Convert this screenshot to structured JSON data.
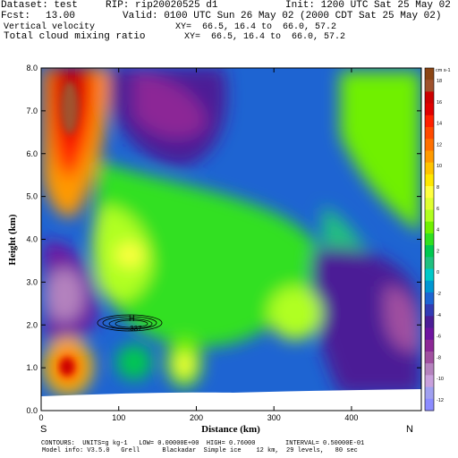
{
  "header": {
    "dataset": "Dataset: test",
    "rip": "RIP: rip20020525 d1",
    "init": "Init: 1200 UTC Sat 25 May 02",
    "fcst_label": "Fcst:",
    "fcst_value": "13.00",
    "valid": "Valid: 0100 UTC Sun 26 May 02 (2000 CDT Sat 25 May 02)",
    "field1": "Vertical velocity",
    "field1_xy": "XY=  66.5, 16.4 to  66.0, 57.2",
    "field2": "Total cloud mixing ratio",
    "field2_xy": "XY=  66.5, 16.4 to  66.0, 57.2"
  },
  "footer": {
    "contours": "CONTOURS:  UNITS=g kg-1   LOW= 0.00000E+00  HIGH= 0.76000        INTERVAL= 0.50000E-01",
    "model": "Model info: V3.5.0   Grell      Blackadar  Simple ice    12 km,  29 levels,   80 sec"
  },
  "chart_data": {
    "type": "heatmap",
    "title": "",
    "xlabel": "Distance (km)",
    "ylabel": "Height (km)",
    "xlim": [
      0,
      490
    ],
    "ylim": [
      0,
      8
    ],
    "xticks": [
      "0",
      "100",
      "200",
      "300",
      "400"
    ],
    "xtick_values": [
      0,
      100,
      200,
      300,
      400
    ],
    "yticks": [
      "0.0",
      "1.0",
      "2.0",
      "3.0",
      "4.0",
      "5.0",
      "6.0",
      "7.0",
      "8.0"
    ],
    "ytick_values": [
      0,
      1,
      2,
      3,
      4,
      5,
      6,
      7,
      8
    ],
    "endpoint_left": "S",
    "endpoint_right": "N",
    "colorbar_units": "cm s-1",
    "colorbar_labels": [
      "18",
      "16",
      "14",
      "12",
      "10",
      "8",
      "6",
      "4",
      "2",
      "0",
      "-2",
      "-4",
      "-6",
      "-8",
      "-10",
      "-12"
    ],
    "colorbar_colors": [
      "#8b4513",
      "#a0522d",
      "#cc0000",
      "#e00000",
      "#ff2000",
      "#ff4a00",
      "#ff7000",
      "#ff9a00",
      "#ffc400",
      "#ffe800",
      "#ffff40",
      "#e0ff30",
      "#b0ff20",
      "#70f000",
      "#30e020",
      "#00c850",
      "#20c080",
      "#00c8c8",
      "#0096d2",
      "#1e64d2",
      "#323cb4",
      "#4b1e96",
      "#6e14a0",
      "#8c2896",
      "#a050a0",
      "#b482be",
      "#c8a0dc",
      "#a0a0f0",
      "#8c8cff"
    ],
    "contour_label": "H",
    "contour_value": ".337",
    "field_regions": [
      {
        "feature": "strong updraft",
        "x": 40,
        "y": 7.2,
        "value": 18
      },
      {
        "feature": "low-level updraft",
        "x": 38,
        "y": 1.0,
        "value": 14
      },
      {
        "feature": "downdraft",
        "x": 35,
        "y": 3.0,
        "value": -12
      },
      {
        "feature": "updraft",
        "x": 120,
        "y": 3.7,
        "value": 7
      },
      {
        "feature": "updraft",
        "x": 190,
        "y": 1.0,
        "value": 6
      },
      {
        "feature": "updraft",
        "x": 320,
        "y": 2.2,
        "value": 6
      },
      {
        "feature": "downdraft",
        "x": 160,
        "y": 7.0,
        "value": -7
      },
      {
        "feature": "downdraft",
        "x": 460,
        "y": 2.1,
        "value": -9
      }
    ]
  }
}
